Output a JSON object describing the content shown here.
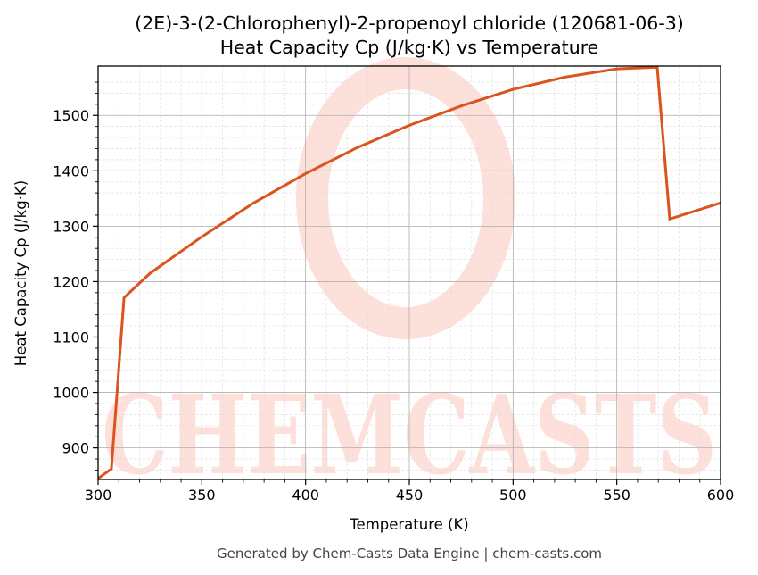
{
  "title": {
    "line1": "(2E)-3-(2-Chlorophenyl)-2-propenoyl chloride (120681-06-3)",
    "line2": "Heat Capacity Cp (J/kg·K) vs Temperature"
  },
  "xaxis": {
    "label": "Temperature (K)",
    "ticks": [
      300,
      350,
      400,
      450,
      500,
      550,
      600
    ],
    "min": 300,
    "max": 600
  },
  "yaxis": {
    "label": "Heat Capacity Cp (J/kg·K)",
    "ticks": [
      900,
      1000,
      1100,
      1200,
      1300,
      1400,
      1500
    ],
    "min": 843,
    "max": 1589
  },
  "footer": "Generated by Chem-Casts Data Engine | chem-casts.com",
  "watermark": "CHEMCASTS",
  "colors": {
    "line": "#d9541e",
    "watermark": "#fde0da",
    "grid_major": "#b0b0b0",
    "grid_minor": "#e0e0e0",
    "footer_text": "#444444"
  },
  "chart_data": {
    "type": "line",
    "title": "(2E)-3-(2-Chlorophenyl)-2-propenoyl chloride (120681-06-3) Heat Capacity Cp (J/kg·K) vs Temperature",
    "xlabel": "Temperature (K)",
    "ylabel": "Heat Capacity Cp (J/kg·K)",
    "xlim": [
      300,
      600
    ],
    "ylim": [
      843,
      1589
    ],
    "grid": true,
    "legend": null,
    "series": [
      {
        "name": "Cp",
        "x": [
          300,
          306.4,
          312.5,
          325,
          350,
          375,
          400,
          425,
          450,
          475,
          500,
          525,
          550,
          569.5,
          575.5,
          600
        ],
        "y": [
          845,
          862,
          1171,
          1215,
          1281,
          1342,
          1395,
          1442,
          1482,
          1517,
          1547,
          1569,
          1584,
          1587,
          1313,
          1342
        ]
      }
    ]
  }
}
